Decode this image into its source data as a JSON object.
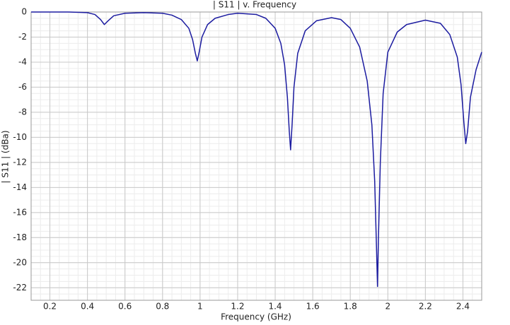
{
  "chart_data": {
    "type": "line",
    "title": "| S11 | v. Frequency",
    "xlabel": "Frequency (GHz)",
    "ylabel": "| S11 | (dBa)",
    "color": "#1c1ca0",
    "grid": true,
    "xlim": [
      0.1,
      2.5
    ],
    "ylim": [
      -23,
      0
    ],
    "xticks": [
      0.2,
      0.4,
      0.6,
      0.8,
      1,
      1.2,
      1.4,
      1.6,
      1.8,
      2,
      2.2,
      2.4
    ],
    "yticks": [
      0,
      -2,
      -4,
      -6,
      -8,
      -10,
      -12,
      -14,
      -16,
      -18,
      -20,
      -22
    ],
    "x": [
      0.1,
      0.2,
      0.3,
      0.4,
      0.44,
      0.47,
      0.49,
      0.51,
      0.54,
      0.6,
      0.7,
      0.8,
      0.85,
      0.9,
      0.94,
      0.96,
      0.975,
      0.985,
      0.995,
      1.01,
      1.04,
      1.08,
      1.15,
      1.2,
      1.3,
      1.35,
      1.4,
      1.43,
      1.45,
      1.465,
      1.475,
      1.482,
      1.49,
      1.5,
      1.52,
      1.56,
      1.62,
      1.7,
      1.75,
      1.8,
      1.85,
      1.89,
      1.915,
      1.93,
      1.94,
      1.945,
      1.95,
      1.96,
      1.975,
      2.0,
      2.05,
      2.1,
      2.2,
      2.28,
      2.33,
      2.37,
      2.39,
      2.405,
      2.415,
      2.425,
      2.44,
      2.47,
      2.5
    ],
    "values": [
      0,
      0,
      0,
      -0.05,
      -0.2,
      -0.6,
      -1.0,
      -0.7,
      -0.3,
      -0.1,
      -0.05,
      -0.1,
      -0.25,
      -0.6,
      -1.3,
      -2.2,
      -3.3,
      -3.9,
      -3.2,
      -2.0,
      -1.0,
      -0.5,
      -0.2,
      -0.1,
      -0.2,
      -0.5,
      -1.3,
      -2.5,
      -4.2,
      -6.8,
      -9.5,
      -11.0,
      -9.0,
      -6.0,
      -3.3,
      -1.5,
      -0.7,
      -0.45,
      -0.6,
      -1.3,
      -2.8,
      -5.5,
      -9.0,
      -13.5,
      -19,
      -21.9,
      -18,
      -12,
      -6.5,
      -3.2,
      -1.6,
      -1.0,
      -0.65,
      -0.9,
      -1.8,
      -3.6,
      -5.8,
      -8.8,
      -10.5,
      -9.5,
      -6.8,
      -4.6,
      -3.2
    ]
  }
}
